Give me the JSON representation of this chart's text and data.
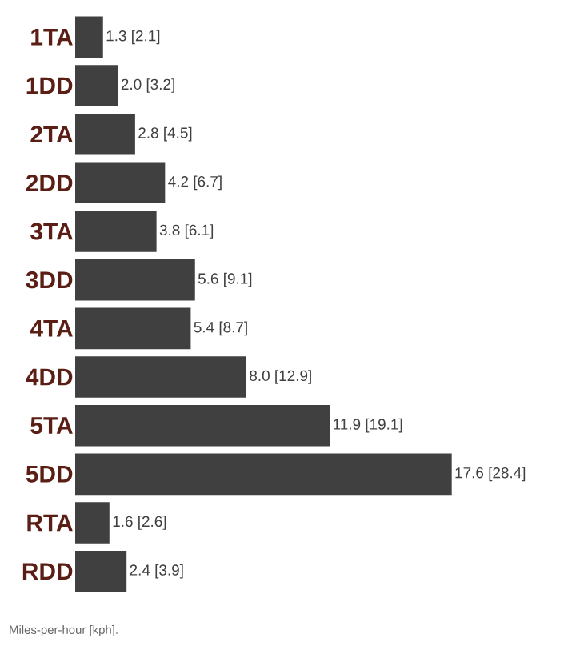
{
  "chart_data": {
    "type": "bar",
    "orientation": "horizontal",
    "categories": [
      "1TA",
      "1DD",
      "2TA",
      "2DD",
      "3TA",
      "3DD",
      "4TA",
      "4DD",
      "5TA",
      "5DD",
      "RTA",
      "RDD"
    ],
    "values": [
      1.3,
      2.0,
      2.8,
      4.2,
      3.8,
      5.6,
      5.4,
      8.0,
      11.9,
      17.6,
      1.6,
      2.4
    ],
    "color": "#404040",
    "value_labels": [
      "1.3 [2.1]",
      "2.0 [3.2]",
      "2.8 [4.5]",
      "4.2 [6.7]",
      "3.8 [6.1]",
      "5.6 [9.1]",
      "5.4 [8.7]",
      "8.0 [12.9]",
      "11.9 [19.1]",
      "17.6 [28.4]",
      "1.6 [2.6]",
      "2.4 [3.9]"
    ],
    "annotations": [
      "Miles-per-hour [kph]."
    ]
  }
}
